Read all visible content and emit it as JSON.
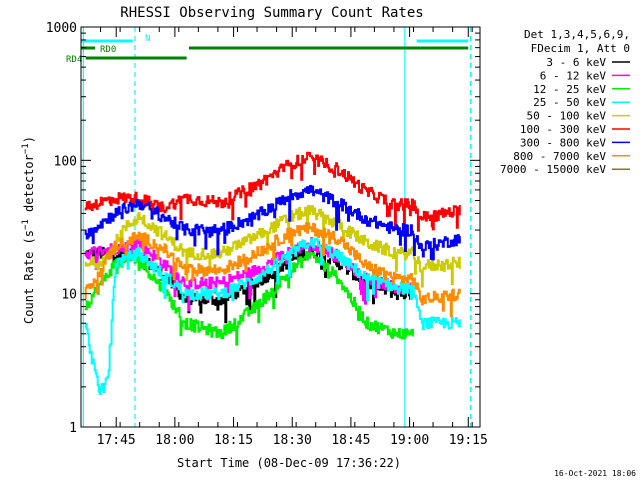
{
  "chart_data": {
    "type": "line",
    "title": "RHESSI Observing Summary Count Rates",
    "xlabel": "Start Time (08-Dec-09 17:36:22)",
    "ylabel": "Count Rate (s⁻¹ detector⁻¹)",
    "ylabel_parts": {
      "main": "Count Rate (s",
      "exp1": "−1",
      "mid": " detector",
      "exp2": "−1",
      "end": ")"
    },
    "yscale": "log",
    "ylim": [
      1,
      1000
    ],
    "y_ticks": [
      {
        "v": 1,
        "label": "1"
      },
      {
        "v": 10,
        "label": "10"
      },
      {
        "v": 100,
        "label": "100"
      },
      {
        "v": 1000,
        "label": "1000"
      }
    ],
    "xlim_minutes": [
      17.6,
      19.3
    ],
    "x_ticks": [
      {
        "v": 17.75,
        "label": "17:45"
      },
      {
        "v": 18.0,
        "label": "18:00"
      },
      {
        "v": 18.25,
        "label": "18:15"
      },
      {
        "v": 18.5,
        "label": "18:30"
      },
      {
        "v": 18.75,
        "label": "18:45"
      },
      {
        "v": 19.0,
        "label": "19:00"
      },
      {
        "v": 19.25,
        "label": "19:15"
      }
    ],
    "legend": {
      "placement": "right",
      "header": [
        "Det 1,3,4,5,6,9,",
        "FDecim 1, Att 0"
      ]
    },
    "series": [
      {
        "name": "3 - 6 keV",
        "color": "#000000",
        "values": [
          [
            17.62,
            20
          ],
          [
            17.75,
            20
          ],
          [
            17.85,
            19
          ],
          [
            17.95,
            14
          ],
          [
            18.05,
            9
          ],
          [
            18.2,
            9
          ],
          [
            18.35,
            12
          ],
          [
            18.5,
            18
          ],
          [
            18.58,
            21
          ],
          [
            18.7,
            17
          ],
          [
            18.82,
            12
          ],
          [
            18.95,
            10
          ],
          [
            19.02,
            10
          ]
        ]
      },
      {
        "name": "6 - 12 keV",
        "color": "#ff00ff",
        "values": [
          [
            17.62,
            20
          ],
          [
            17.75,
            22
          ],
          [
            17.85,
            24
          ],
          [
            17.95,
            17
          ],
          [
            18.05,
            12
          ],
          [
            18.2,
            12
          ],
          [
            18.35,
            15
          ],
          [
            18.5,
            21
          ],
          [
            18.58,
            24
          ],
          [
            18.7,
            19
          ],
          [
            18.82,
            13
          ],
          [
            18.95,
            11
          ],
          [
            19.02,
            11
          ]
        ]
      },
      {
        "name": "12 - 25 keV",
        "color": "#00ee00",
        "values": [
          [
            17.62,
            8
          ],
          [
            17.75,
            17
          ],
          [
            17.85,
            18
          ],
          [
            17.95,
            11
          ],
          [
            18.05,
            6
          ],
          [
            18.2,
            5
          ],
          [
            18.35,
            8
          ],
          [
            18.5,
            15
          ],
          [
            18.58,
            20
          ],
          [
            18.7,
            13
          ],
          [
            18.82,
            6
          ],
          [
            18.95,
            5
          ],
          [
            19.02,
            5
          ]
        ]
      },
      {
        "name": "25 - 50 keV",
        "color": "#00ffff",
        "values": [
          [
            17.62,
            6
          ],
          [
            17.68,
            1.8
          ],
          [
            17.72,
            2.5
          ],
          [
            17.75,
            17
          ],
          [
            17.85,
            20
          ],
          [
            17.95,
            14
          ],
          [
            18.05,
            10
          ],
          [
            18.2,
            10
          ],
          [
            18.35,
            13
          ],
          [
            18.5,
            20
          ],
          [
            18.58,
            25
          ],
          [
            18.7,
            19
          ],
          [
            18.82,
            13
          ],
          [
            18.95,
            11
          ],
          [
            19.02,
            11
          ],
          [
            19.05,
            6
          ],
          [
            19.22,
            6
          ]
        ]
      },
      {
        "name": "50 - 100 keV",
        "color": "#cccc00",
        "values": [
          [
            17.62,
            16
          ],
          [
            17.72,
            19
          ],
          [
            17.78,
            30
          ],
          [
            17.85,
            38
          ],
          [
            17.95,
            28
          ],
          [
            18.05,
            20
          ],
          [
            18.2,
            20
          ],
          [
            18.35,
            27
          ],
          [
            18.5,
            38
          ],
          [
            18.58,
            42
          ],
          [
            18.7,
            33
          ],
          [
            18.82,
            24
          ],
          [
            18.95,
            20
          ],
          [
            19.02,
            20
          ],
          [
            19.05,
            16
          ],
          [
            19.22,
            17
          ]
        ]
      },
      {
        "name": "100 - 300 keV",
        "color": "#ff0000",
        "values": [
          [
            17.62,
            45
          ],
          [
            17.75,
            52
          ],
          [
            17.85,
            52
          ],
          [
            17.95,
            44
          ],
          [
            18.05,
            52
          ],
          [
            18.2,
            48
          ],
          [
            18.35,
            65
          ],
          [
            18.5,
            95
          ],
          [
            18.58,
            105
          ],
          [
            18.7,
            85
          ],
          [
            18.82,
            58
          ],
          [
            18.95,
            46
          ],
          [
            19.02,
            47
          ],
          [
            19.05,
            37
          ],
          [
            19.22,
            42
          ]
        ]
      },
      {
        "name": "300 - 800 keV",
        "color": "#0000ff",
        "values": [
          [
            17.62,
            28
          ],
          [
            17.75,
            40
          ],
          [
            17.85,
            48
          ],
          [
            17.95,
            38
          ],
          [
            18.05,
            30
          ],
          [
            18.2,
            30
          ],
          [
            18.35,
            38
          ],
          [
            18.5,
            55
          ],
          [
            18.58,
            60
          ],
          [
            18.7,
            48
          ],
          [
            18.82,
            36
          ],
          [
            18.95,
            30
          ],
          [
            19.02,
            30
          ],
          [
            19.05,
            22
          ],
          [
            19.22,
            26
          ]
        ]
      },
      {
        "name": "800 - 7000 keV",
        "color": "#ff8c00",
        "values": [
          [
            17.62,
            10
          ],
          [
            17.75,
            23
          ],
          [
            17.85,
            27
          ],
          [
            17.95,
            22
          ],
          [
            18.05,
            15
          ],
          [
            18.2,
            15
          ],
          [
            18.35,
            20
          ],
          [
            18.5,
            29
          ],
          [
            18.58,
            31
          ],
          [
            18.7,
            26
          ],
          [
            18.82,
            16
          ],
          [
            18.95,
            13
          ],
          [
            19.02,
            13
          ],
          [
            19.05,
            9
          ],
          [
            19.22,
            10
          ]
        ]
      },
      {
        "name": "7000 - 15000 keV",
        "color": "#808000",
        "values": []
      }
    ],
    "flags": [
      {
        "name": "N",
        "color": "#00ffff",
        "segments": [
          [
            17.6,
            17.82
          ],
          [
            19.03,
            19.25
          ]
        ]
      },
      {
        "name": "RD0",
        "color": "#008000",
        "segments": [
          [
            17.6,
            17.66
          ],
          [
            18.06,
            19.25
          ]
        ]
      },
      {
        "name": "RD4",
        "color": "#008000",
        "segments": [
          [
            17.62,
            18.05
          ]
        ]
      }
    ],
    "vlines": [
      {
        "x": 17.61,
        "color": "#00ffff",
        "style": "solid"
      },
      {
        "x": 17.83,
        "color": "#00ffff",
        "style": "dashed"
      },
      {
        "x": 18.98,
        "color": "#00ffff",
        "style": "solid"
      },
      {
        "x": 19.26,
        "color": "#00ffff",
        "style": "dashed"
      }
    ],
    "grid": false
  },
  "timestamp": "16-Oct-2021 18:06"
}
